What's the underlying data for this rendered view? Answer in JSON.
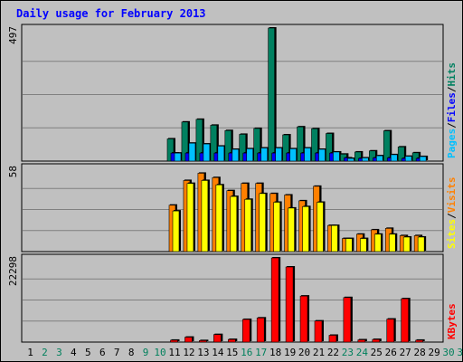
{
  "chart_data": {
    "type": "bar",
    "title": "Daily usage for February 2013",
    "categories": [
      "1",
      "2",
      "3",
      "4",
      "5",
      "6",
      "7",
      "8",
      "9",
      "10",
      "11",
      "12",
      "13",
      "14",
      "15",
      "16",
      "17",
      "18",
      "19",
      "20",
      "21",
      "22",
      "23",
      "24",
      "25",
      "26",
      "27",
      "28",
      "29",
      "30",
      "31"
    ],
    "weekend_days": [
      "2",
      "3",
      "9",
      "10",
      "16",
      "17",
      "23",
      "24",
      "30",
      "31"
    ],
    "panels": [
      {
        "name": "hits-files-pages",
        "ymax": 497,
        "ymax_label": "497",
        "legend": [
          "Pages",
          "Files",
          "Hits"
        ],
        "series": [
          {
            "name": "Hits",
            "color": "#008060",
            "values": [
              null,
              null,
              null,
              null,
              null,
              null,
              null,
              null,
              null,
              null,
              83,
              146,
              156,
              134,
              114,
              100,
              122,
              497,
              98,
              128,
              121,
              103,
              26,
              34,
              38,
              113,
              53,
              31,
              null,
              null,
              null
            ]
          },
          {
            "name": "Files",
            "color": "#0000ff",
            "values": [
              null,
              null,
              null,
              null,
              null,
              null,
              null,
              null,
              null,
              null,
              30,
              30,
              30,
              30,
              30,
              30,
              30,
              30,
              30,
              30,
              30,
              30,
              12,
              10,
              12,
              12,
              10,
              10,
              null,
              null,
              null
            ]
          },
          {
            "name": "Pages",
            "color": "#00c0ff",
            "values": [
              null,
              null,
              null,
              null,
              null,
              null,
              null,
              null,
              null,
              null,
              30,
              67,
              64,
              56,
              44,
              46,
              49,
              49,
              46,
              49,
              44,
              34,
              10,
              12,
              20,
              24,
              18,
              17,
              null,
              null,
              null
            ]
          }
        ]
      },
      {
        "name": "visits-sites",
        "ymax": 58,
        "ymax_label": "58",
        "legend": [
          "Sites",
          "Visits"
        ],
        "series": [
          {
            "name": "Visits",
            "color": "#ff8000",
            "values": [
              null,
              null,
              null,
              null,
              null,
              null,
              null,
              null,
              null,
              null,
              32,
              49,
              54,
              51,
              42,
              47,
              47,
              40,
              39,
              35,
              45,
              18,
              9,
              12,
              15,
              16,
              11,
              11,
              null,
              null,
              null
            ]
          },
          {
            "name": "Sites",
            "color": "#ffff00",
            "values": [
              null,
              null,
              null,
              null,
              null,
              null,
              null,
              null,
              null,
              null,
              28,
              47,
              49,
              46,
              38,
              36,
              40,
              34,
              30,
              31,
              34,
              18,
              9,
              9,
              12,
              12,
              10,
              10,
              null,
              null,
              null
            ]
          }
        ]
      },
      {
        "name": "kbytes",
        "ymax": 22298,
        "ymax_label": "22298",
        "legend": [
          "KBytes"
        ],
        "series": [
          {
            "name": "KBytes",
            "color": "#ff0000",
            "values": [
              null,
              null,
              null,
              null,
              null,
              null,
              null,
              null,
              null,
              null,
              500,
              1300,
              400,
              2000,
              700,
              6000,
              6400,
              22298,
              19900,
              12200,
              5600,
              1800,
              11800,
              600,
              700,
              6100,
              11500,
              500,
              null,
              null,
              null
            ]
          }
        ]
      }
    ]
  },
  "colors": {
    "title": "#0000ff",
    "plot_bg": "#c0c0c0",
    "gridline": "#808080",
    "weekday_label": "#000000",
    "weekend_label": "#00805c",
    "kbytes_legend": "#ff0000",
    "pages_legend": "#00c0ff",
    "files_legend": "#0000ff",
    "hits_legend": "#008060",
    "sites_legend": "#ffff00",
    "visits_legend": "#ff8000",
    "shadow": "#000000"
  }
}
